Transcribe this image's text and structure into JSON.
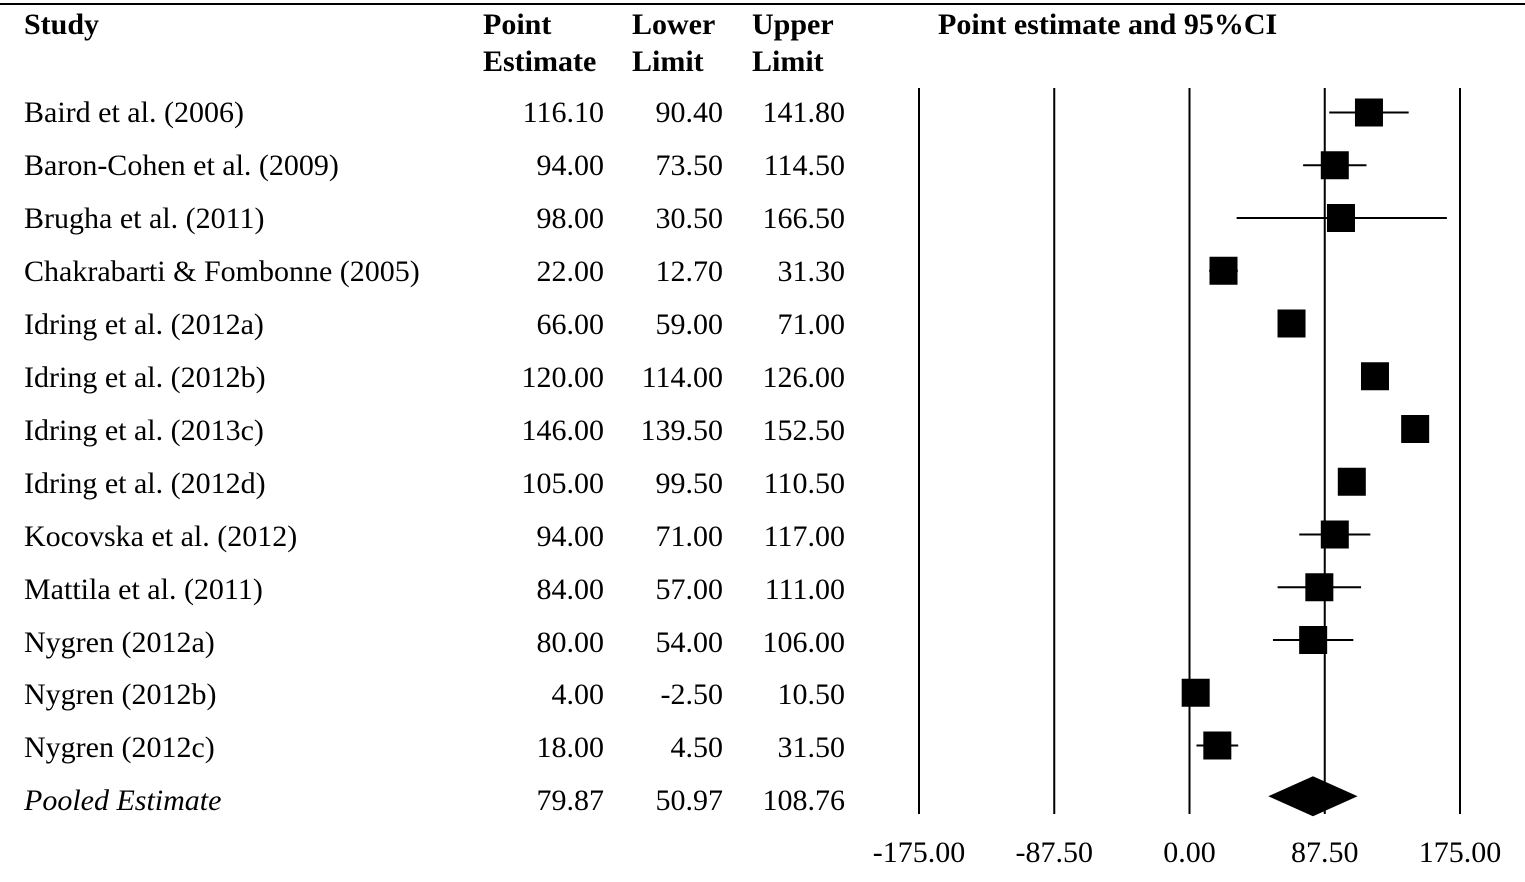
{
  "headers": {
    "study": "Study",
    "point_estimate": [
      "Point",
      "Estimate"
    ],
    "lower_limit": [
      "Lower",
      "Limit"
    ],
    "upper_limit": [
      "Upper",
      "Limit"
    ],
    "plot_title": "Point estimate and 95%CI"
  },
  "rows": [
    {
      "study": "Baird et al. (2006)",
      "pe": "116.10",
      "ll": "90.40",
      "ul": "141.80"
    },
    {
      "study": "Baron-Cohen et al. (2009)",
      "pe": "94.00",
      "ll": "73.50",
      "ul": "114.50"
    },
    {
      "study": "Brugha et al. (2011)",
      "pe": "98.00",
      "ll": "30.50",
      "ul": "166.50"
    },
    {
      "study": "Chakrabarti & Fombonne (2005)",
      "pe": "22.00",
      "ll": "12.70",
      "ul": "31.30"
    },
    {
      "study": "Idring et al. (2012a)",
      "pe": "66.00",
      "ll": "59.00",
      "ul": "71.00"
    },
    {
      "study": "Idring et al. (2012b)",
      "pe": "120.00",
      "ll": "114.00",
      "ul": "126.00"
    },
    {
      "study": "Idring et al. (2013c)",
      "pe": "146.00",
      "ll": "139.50",
      "ul": "152.50"
    },
    {
      "study": "Idring et al. (2012d)",
      "pe": "105.00",
      "ll": "99.50",
      "ul": "110.50"
    },
    {
      "study": "Kocovska et al. (2012)",
      "pe": "94.00",
      "ll": "71.00",
      "ul": "117.00"
    },
    {
      "study": "Mattila et al. (2011)",
      "pe": "84.00",
      "ll": "57.00",
      "ul": "111.00"
    },
    {
      "study": "Nygren (2012a)",
      "pe": "80.00",
      "ll": "54.00",
      "ul": "106.00"
    },
    {
      "study": "Nygren (2012b)",
      "pe": "4.00",
      "ll": "-2.50",
      "ul": "10.50"
    },
    {
      "study": "Nygren (2012c)",
      "pe": "18.00",
      "ll": "4.50",
      "ul": "31.50"
    }
  ],
  "pooled": {
    "study": "Pooled Estimate",
    "pe": "79.87",
    "ll": "50.97",
    "ul": "108.76"
  },
  "chart_data": {
    "type": "forest",
    "title": "Point estimate and 95%CI",
    "xlim": [
      -175,
      175
    ],
    "ticks": [
      {
        "value": -175,
        "label": "-175.00"
      },
      {
        "value": -87.5,
        "label": "-87.50"
      },
      {
        "value": 0,
        "label": "0.00"
      },
      {
        "value": 87.5,
        "label": "87.50"
      },
      {
        "value": 175,
        "label": "175.00"
      }
    ],
    "studies": [
      {
        "label": "Baird et al. (2006)",
        "estimate": 116.1,
        "lower": 90.4,
        "upper": 141.8
      },
      {
        "label": "Baron-Cohen et al. (2009)",
        "estimate": 94.0,
        "lower": 73.5,
        "upper": 114.5
      },
      {
        "label": "Brugha et al. (2011)",
        "estimate": 98.0,
        "lower": 30.5,
        "upper": 166.5
      },
      {
        "label": "Chakrabarti & Fombonne (2005)",
        "estimate": 22.0,
        "lower": 12.7,
        "upper": 31.3
      },
      {
        "label": "Idring et al. (2012a)",
        "estimate": 66.0,
        "lower": 59.0,
        "upper": 71.0
      },
      {
        "label": "Idring et al. (2012b)",
        "estimate": 120.0,
        "lower": 114.0,
        "upper": 126.0
      },
      {
        "label": "Idring et al. (2013c)",
        "estimate": 146.0,
        "lower": 139.5,
        "upper": 152.5
      },
      {
        "label": "Idring et al. (2012d)",
        "estimate": 105.0,
        "lower": 99.5,
        "upper": 110.5
      },
      {
        "label": "Kocovska et al. (2012)",
        "estimate": 94.0,
        "lower": 71.0,
        "upper": 117.0
      },
      {
        "label": "Mattila et al. (2011)",
        "estimate": 84.0,
        "lower": 57.0,
        "upper": 111.0
      },
      {
        "label": "Nygren (2012a)",
        "estimate": 80.0,
        "lower": 54.0,
        "upper": 106.0
      },
      {
        "label": "Nygren (2012b)",
        "estimate": 4.0,
        "lower": -2.5,
        "upper": 10.5
      },
      {
        "label": "Nygren (2012c)",
        "estimate": 18.0,
        "lower": 4.5,
        "upper": 31.5
      }
    ],
    "pooled": {
      "label": "Pooled Estimate",
      "estimate": 79.87,
      "lower": 50.97,
      "upper": 108.76
    },
    "marker_color": "#000000"
  }
}
